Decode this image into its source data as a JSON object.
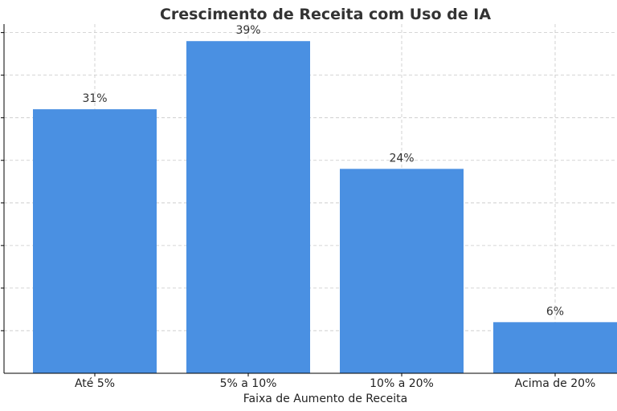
{
  "chart_data": {
    "type": "bar",
    "title": "Crescimento de Receita com Uso de IA",
    "xlabel": "Faixa de Aumento de Receita",
    "ylabel": "",
    "categories": [
      "Até 5%",
      "5% a 10%",
      "10% a 20%",
      "Acima de 20%"
    ],
    "values": [
      31,
      39,
      24,
      6
    ],
    "data_labels": [
      "31%",
      "39%",
      "24%",
      "6%"
    ],
    "ylim": [
      0,
      41
    ],
    "grid": true,
    "bar_color": "#4a90e2"
  }
}
